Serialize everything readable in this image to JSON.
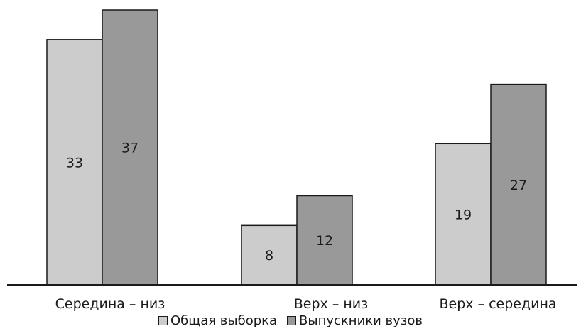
{
  "chart_data": {
    "type": "bar",
    "categories": [
      "Середина – низ",
      "Верх – низ",
      "Верх – середина"
    ],
    "series": [
      {
        "name": "Общая выборка",
        "values": [
          33,
          8,
          19
        ],
        "color": "#cccccc"
      },
      {
        "name": "Выпускники вузов",
        "values": [
          37,
          12,
          27
        ],
        "color": "#999999"
      }
    ],
    "ylim": [
      0,
      37
    ],
    "grid": false,
    "legend_position": "bottom",
    "data_labels": true
  }
}
